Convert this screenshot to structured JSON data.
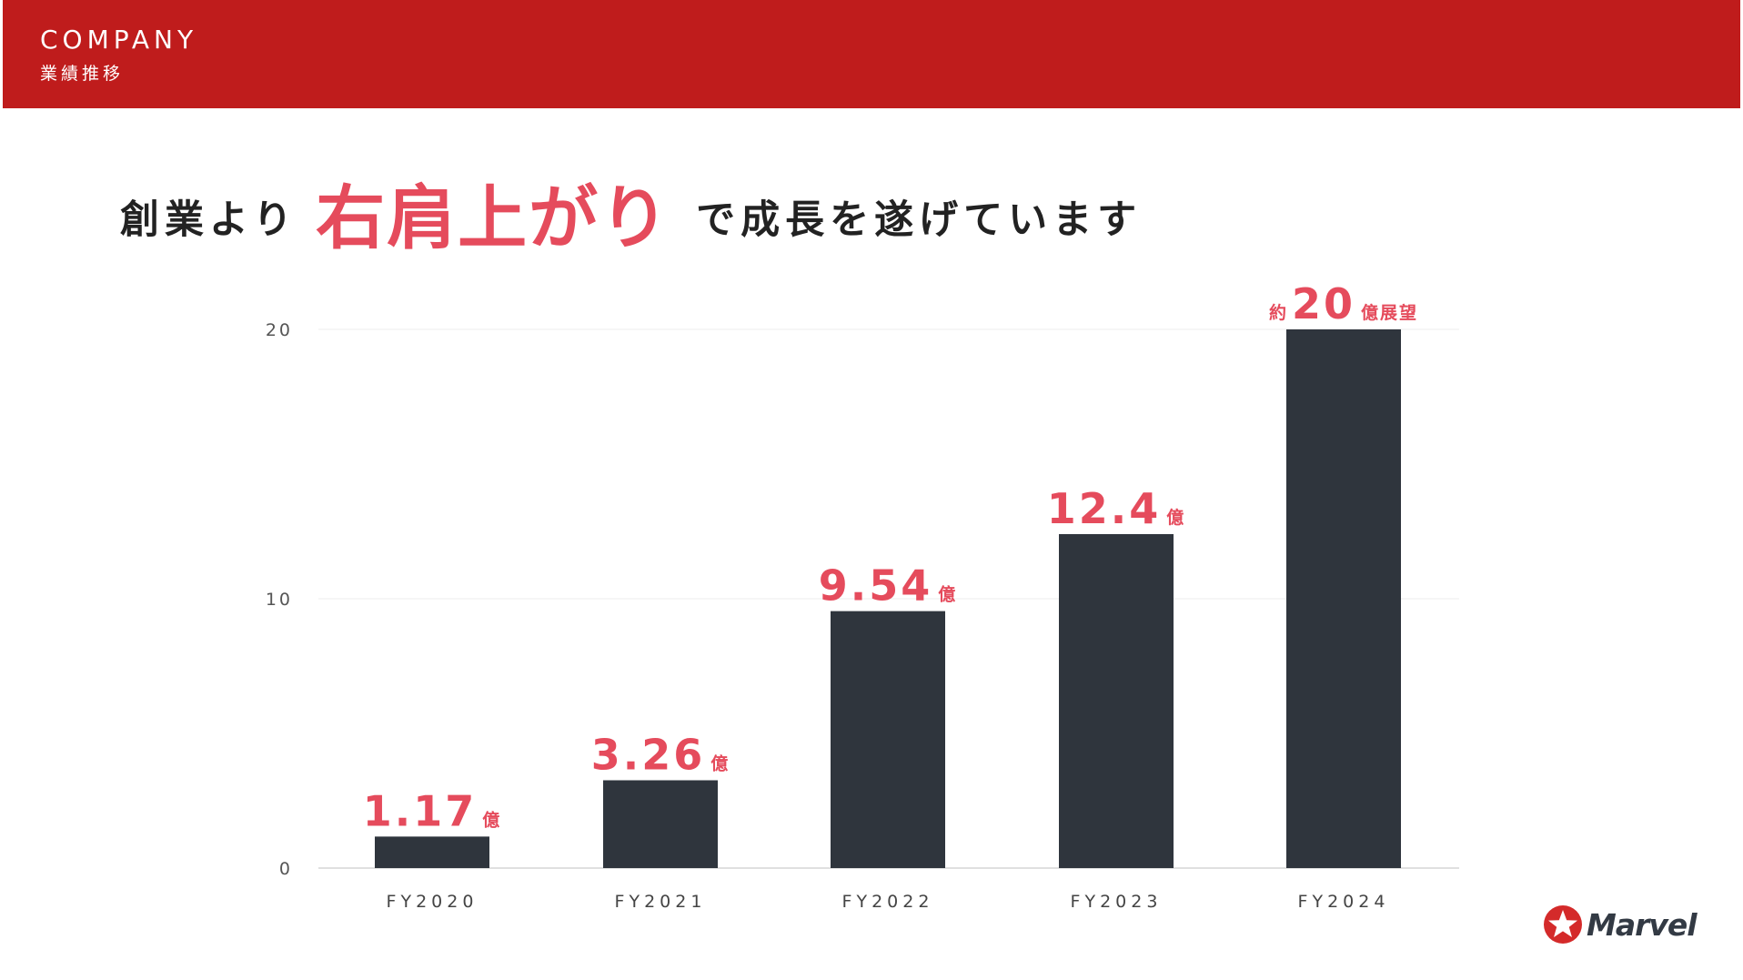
{
  "header": {
    "title": "COMPANY",
    "subtitle": "業績推移"
  },
  "headline": {
    "pre": "創業より",
    "emphasis": "右肩上がり",
    "post": "で成長を遂げています"
  },
  "chart_data": {
    "type": "bar",
    "categories": [
      "FY2020",
      "FY2021",
      "FY2022",
      "FY2023",
      "FY2024"
    ],
    "values": [
      1.17,
      3.26,
      9.54,
      12.4,
      20
    ],
    "data_labels": [
      {
        "prefix": "",
        "value": "1.17",
        "suffix": "億"
      },
      {
        "prefix": "",
        "value": "3.26",
        "suffix": "億"
      },
      {
        "prefix": "",
        "value": "9.54",
        "suffix": "億"
      },
      {
        "prefix": "",
        "value": "12.4",
        "suffix": "億"
      },
      {
        "prefix": "約",
        "value": "20",
        "suffix": "億展望"
      }
    ],
    "ylim": [
      0,
      20
    ],
    "yticks": [
      0,
      10,
      20
    ],
    "grid": true,
    "bar_color": "#2f353d",
    "label_color": "#e54b5c",
    "gridline_color": "#eeeeee"
  },
  "logo": {
    "text": "Marvel",
    "mark_color": "#d42a2a"
  },
  "colors": {
    "header_bg": "#bf1c1c",
    "accent": "#e54b5c",
    "text_dark": "#222222"
  }
}
